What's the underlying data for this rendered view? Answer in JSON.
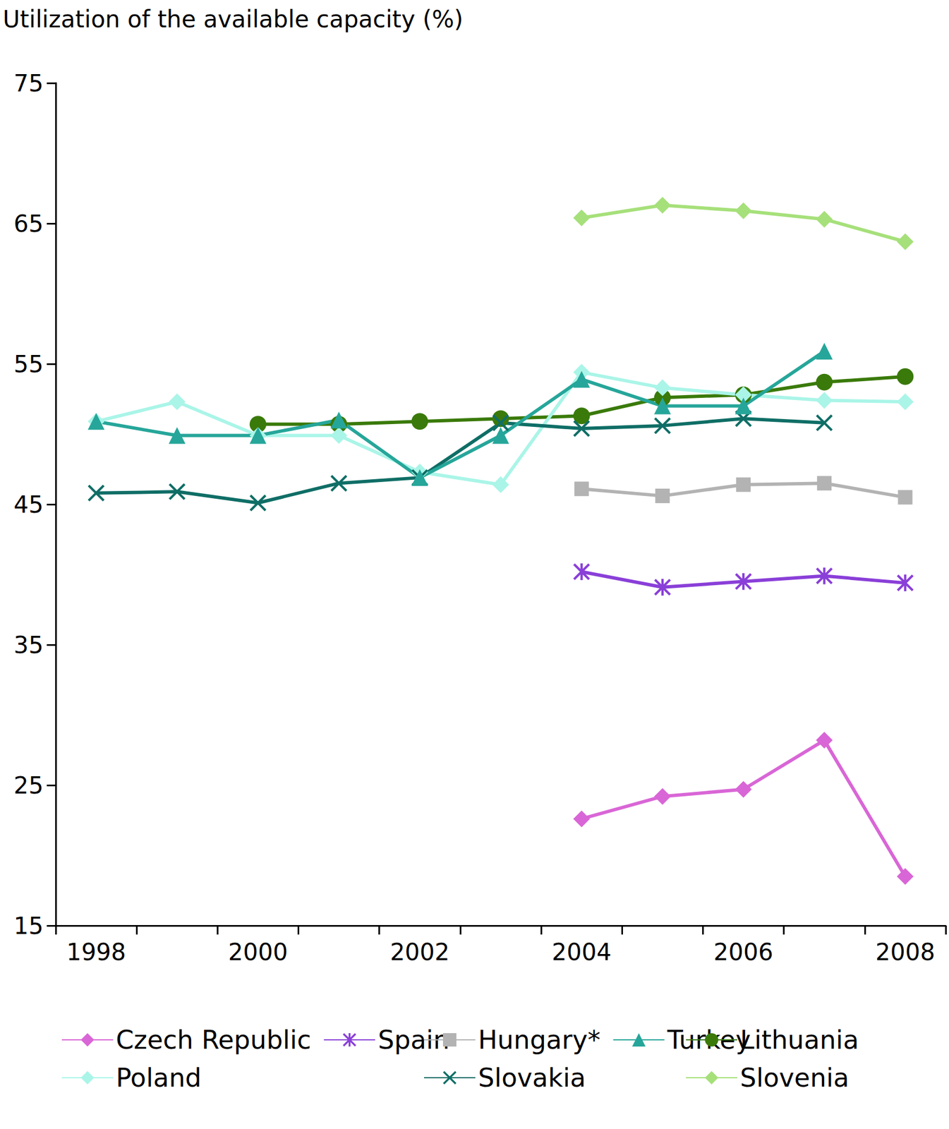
{
  "chart_data": {
    "type": "line",
    "ylabel": "Utilization of the available capacity (%)",
    "categories": [
      "1998",
      null,
      "2000",
      null,
      "2002",
      null,
      "2004",
      null,
      "2006",
      null,
      "2008"
    ],
    "series": [
      {
        "name": "Czech Republic",
        "color": "#d966d6",
        "marker": "diamond",
        "values": [
          null,
          null,
          null,
          null,
          null,
          null,
          22.6,
          24.2,
          24.7,
          28.2,
          18.5
        ]
      },
      {
        "name": "Hungary*",
        "color": "#b3b3b3",
        "marker": "square",
        "values": [
          null,
          null,
          null,
          null,
          null,
          null,
          46.1,
          45.6,
          46.4,
          46.5,
          45.5
        ]
      },
      {
        "name": "Lithuania",
        "color": "#3a7a0a",
        "marker": "circle",
        "values": [
          null,
          null,
          50.7,
          50.7,
          50.9,
          51.1,
          51.3,
          52.6,
          52.8,
          53.7,
          54.1
        ]
      },
      {
        "name": "Poland",
        "color": "#aaf5e8",
        "marker": "diamond",
        "values": [
          50.9,
          52.3,
          49.9,
          49.9,
          47.3,
          46.4,
          54.4,
          53.3,
          52.8,
          52.4,
          52.3
        ]
      },
      {
        "name": "Slovakia",
        "color": "#0f6e66",
        "marker": "x",
        "values": [
          45.8,
          45.9,
          45.1,
          46.5,
          46.9,
          50.8,
          50.4,
          50.6,
          51.1,
          50.8,
          null
        ]
      },
      {
        "name": "Slovenia",
        "color": "#a6e07a",
        "marker": "diamond",
        "values": [
          null,
          null,
          null,
          null,
          null,
          null,
          65.4,
          66.3,
          65.9,
          65.3,
          63.7
        ]
      },
      {
        "name": "Spain",
        "color": "#8a3fd8",
        "marker": "asterisk",
        "values": [
          null,
          null,
          null,
          null,
          null,
          null,
          40.2,
          39.1,
          39.5,
          39.9,
          39.4
        ]
      },
      {
        "name": "Turkey",
        "color": "#26a69a",
        "marker": "triangle",
        "values": [
          50.9,
          49.9,
          49.9,
          51.0,
          46.9,
          49.9,
          53.9,
          52.0,
          52.0,
          55.9,
          null
        ]
      }
    ],
    "ylim": [
      15,
      75
    ],
    "yticks": [
      15,
      25,
      35,
      45,
      55,
      65,
      75
    ],
    "grid": false,
    "legend": "bottom"
  }
}
